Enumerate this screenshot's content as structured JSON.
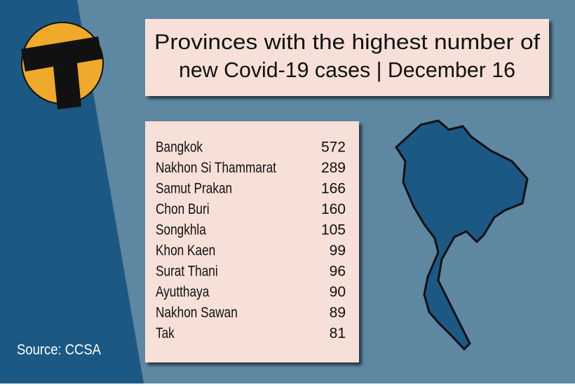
{
  "header": {
    "title": [
      "Provinces with the highest number of",
      "new Covid-19 cases | December 16"
    ]
  },
  "table": {
    "rows": [
      [
        "Bangkok",
        572
      ],
      [
        "Nakhon Si Thammarat",
        289
      ],
      [
        "Samut Prakan",
        166
      ],
      [
        "Chon Buri",
        160
      ],
      [
        "Songkhla",
        105
      ],
      [
        "Khon Kaen",
        99
      ],
      [
        "Surat Thani",
        96
      ],
      [
        "Ayutthaya",
        90
      ],
      [
        "Nakhon Sawan",
        89
      ],
      [
        "Tak",
        81
      ]
    ]
  },
  "footer": {
    "source": "Source: CCSA"
  }
}
